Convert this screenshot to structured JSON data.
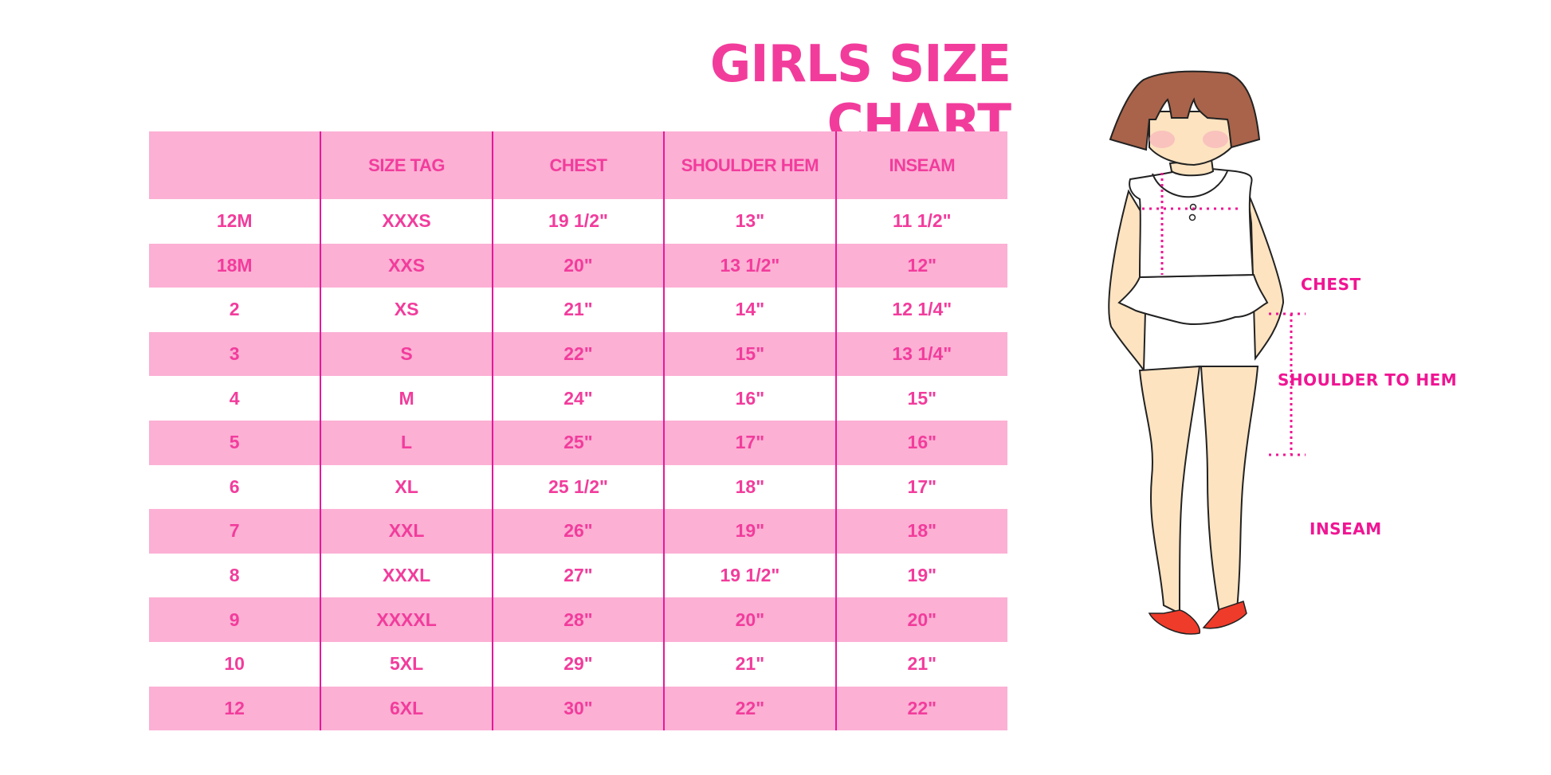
{
  "title": "GIRLS SIZE CHART",
  "table": {
    "headers": [
      "",
      "SIZE TAG",
      "CHEST",
      "SHOULDER HEM",
      "INSEAM"
    ],
    "rows": [
      [
        "12M",
        "XXXS",
        "19 1/2\"",
        "13\"",
        "11 1/2\""
      ],
      [
        "18M",
        "XXS",
        "20\"",
        "13 1/2\"",
        "12\""
      ],
      [
        "2",
        "XS",
        "21\"",
        "14\"",
        "12 1/4\""
      ],
      [
        "3",
        "S",
        "22\"",
        "15\"",
        "13 1/4\""
      ],
      [
        "4",
        "M",
        "24\"",
        "16\"",
        "15\""
      ],
      [
        "5",
        "L",
        "25\"",
        "17\"",
        "16\""
      ],
      [
        "6",
        "XL",
        "25 1/2\"",
        "18\"",
        "17\""
      ],
      [
        "7",
        "XXL",
        "26\"",
        "19\"",
        "18\""
      ],
      [
        "8",
        "XXXL",
        "27\"",
        "19 1/2\"",
        "19\""
      ],
      [
        "9",
        "XXXXL",
        "28\"",
        "20\"",
        "20\""
      ],
      [
        "10",
        "5XL",
        "29\"",
        "21\"",
        "21\""
      ],
      [
        "12",
        "6XL",
        "30\"",
        "22\"",
        "22\""
      ]
    ]
  },
  "diagram": {
    "labels": {
      "chest": "CHEST",
      "shoulder_to_hem": "SHOULDER TO HEM",
      "inseam": "INSEAM"
    }
  },
  "colors": {
    "accent": "#f23c9c",
    "stripe": "#fcb0d4",
    "divider": "#e8179a"
  }
}
